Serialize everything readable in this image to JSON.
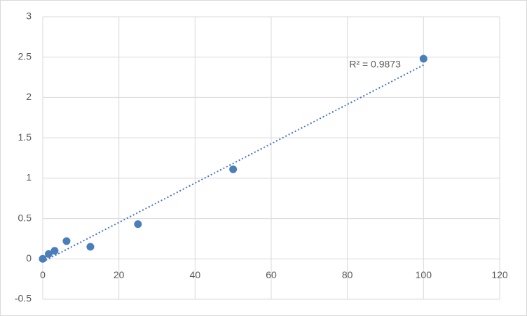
{
  "chart_data": {
    "type": "scatter",
    "x": [
      0,
      1.5625,
      3.125,
      6.25,
      12.5,
      25,
      50,
      100
    ],
    "values": [
      0,
      0.06,
      0.1,
      0.22,
      0.15,
      0.43,
      1.11,
      2.48
    ],
    "color": "#4a7ebb",
    "trendline": "linear",
    "annotation": "R² = 0.9873",
    "xlim": [
      0,
      120
    ],
    "xticks": [
      0,
      20,
      40,
      60,
      80,
      100,
      120
    ],
    "ylim": [
      -0.5,
      3
    ],
    "yticks": [
      -0.5,
      0,
      0.5,
      1,
      1.5,
      2,
      2.5,
      3
    ],
    "grid": true
  }
}
